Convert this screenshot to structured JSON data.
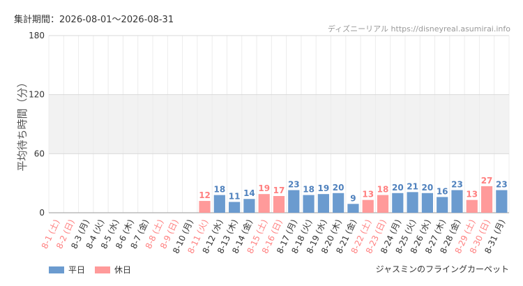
{
  "header": {
    "period_label": "集計期間：2026-08-01～2026-08-31",
    "source": "ディズニーリアル https://disneyreal.asumirai.info"
  },
  "footer": {
    "attraction": "ジャスミンのフライングカーペット"
  },
  "legend": [
    {
      "label": "平日",
      "color": "#6b9bcf"
    },
    {
      "label": "休日",
      "color": "#ff9a9a"
    }
  ],
  "colors": {
    "weekday_bar": "#6b9bcf",
    "holiday_bar": "#ff9a9a",
    "weekday_label": "#333333",
    "holiday_label": "#ff7f7f",
    "weekday_value": "#4f81bd",
    "holiday_value": "#ff7f7f",
    "band": "#f2f2f2"
  },
  "chart_data": {
    "type": "bar",
    "ylabel": "平均待ち時間（分）",
    "ylim": [
      0,
      180
    ],
    "yticks": [
      0,
      60,
      120,
      180
    ],
    "grid": true,
    "categories": [
      "8-1 (土)",
      "8-2 (日)",
      "8-3 (月)",
      "8-4 (火)",
      "8-5 (水)",
      "8-6 (木)",
      "8-7 (金)",
      "8-8 (土)",
      "8-9 (日)",
      "8-10 (月)",
      "8-11 (火)",
      "8-12 (水)",
      "8-13 (木)",
      "8-14 (金)",
      "8-15 (土)",
      "8-16 (日)",
      "8-17 (月)",
      "8-18 (火)",
      "8-19 (水)",
      "8-20 (木)",
      "8-21 (金)",
      "8-22 (土)",
      "8-23 (日)",
      "8-24 (月)",
      "8-25 (火)",
      "8-26 (水)",
      "8-27 (木)",
      "8-28 (金)",
      "8-29 (土)",
      "8-30 (日)",
      "8-31 (月)"
    ],
    "day_type": [
      "holiday",
      "holiday",
      "weekday",
      "weekday",
      "weekday",
      "weekday",
      "weekday",
      "holiday",
      "holiday",
      "weekday",
      "holiday",
      "weekday",
      "weekday",
      "weekday",
      "holiday",
      "holiday",
      "weekday",
      "weekday",
      "weekday",
      "weekday",
      "weekday",
      "holiday",
      "holiday",
      "weekday",
      "weekday",
      "weekday",
      "weekday",
      "weekday",
      "holiday",
      "holiday",
      "weekday"
    ],
    "values": [
      null,
      null,
      null,
      null,
      null,
      null,
      null,
      null,
      null,
      null,
      12,
      18,
      11,
      14,
      19,
      17,
      23,
      18,
      19,
      20,
      9,
      13,
      18,
      20,
      21,
      20,
      16,
      23,
      13,
      27,
      23
    ],
    "series": [
      {
        "name": "平日",
        "color": "#6b9bcf"
      },
      {
        "name": "休日",
        "color": "#ff9a9a"
      }
    ]
  }
}
